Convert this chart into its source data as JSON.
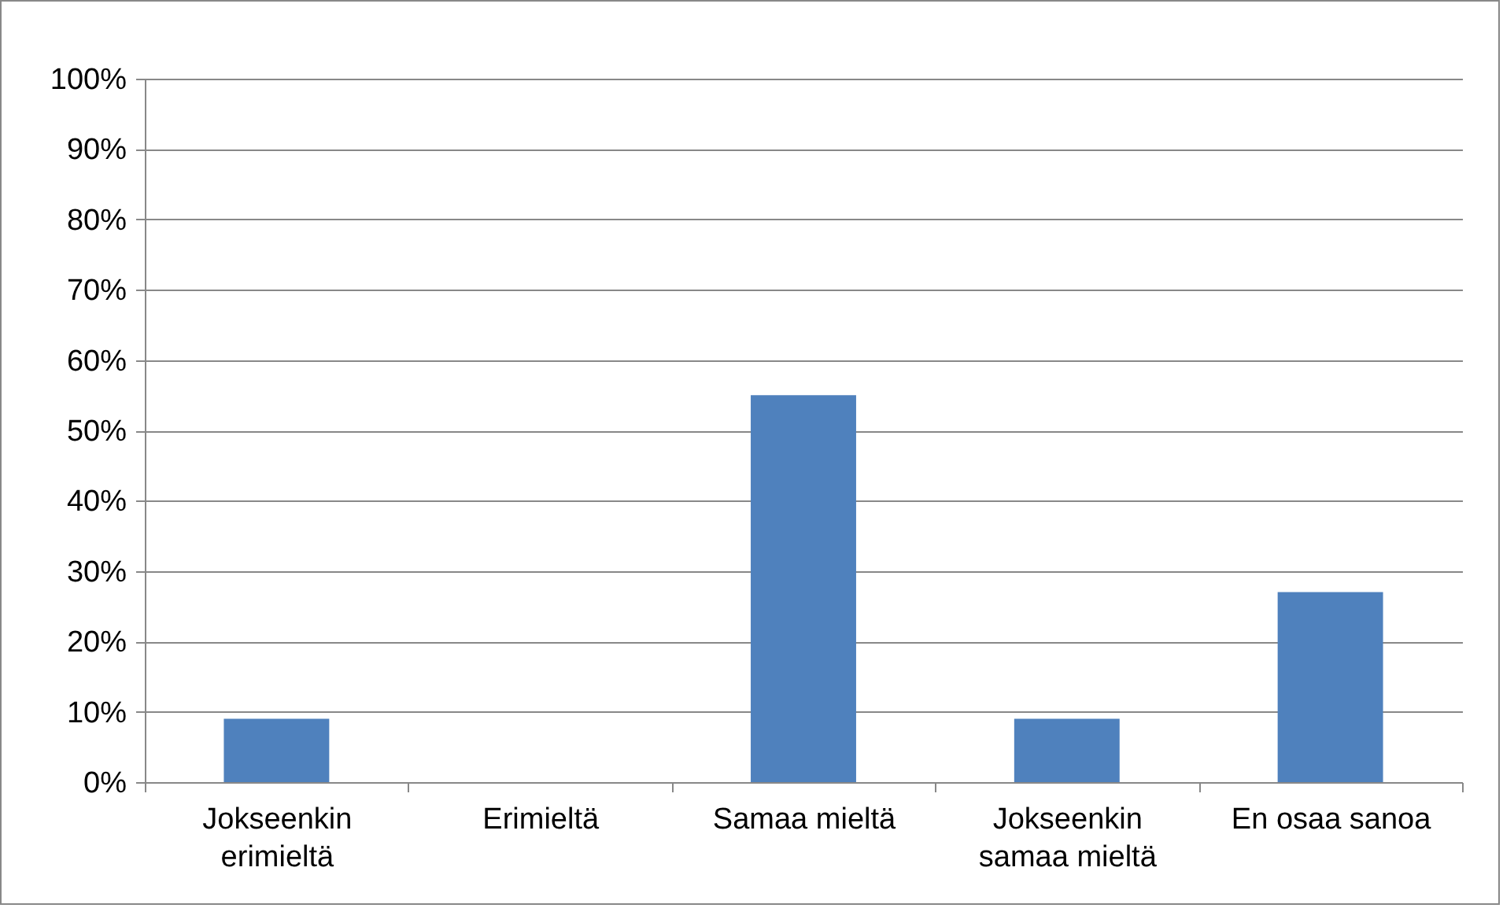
{
  "chart_data": {
    "type": "bar",
    "categories": [
      "Jokseenkin erimieltä",
      "Erimieltä",
      "Samaa mieltä",
      "Jokseenkin samaa mieltä",
      "En osaa sanoa"
    ],
    "values": [
      9,
      0,
      55,
      9,
      27
    ],
    "color": "#4f81bd",
    "ylim": [
      0,
      100
    ],
    "yticks": [
      {
        "value": 0,
        "label": "0%"
      },
      {
        "value": 10,
        "label": "10%"
      },
      {
        "value": 20,
        "label": "20%"
      },
      {
        "value": 30,
        "label": "30%"
      },
      {
        "value": 40,
        "label": "40%"
      },
      {
        "value": 50,
        "label": "50%"
      },
      {
        "value": 60,
        "label": "60%"
      },
      {
        "value": 70,
        "label": "70%"
      },
      {
        "value": 80,
        "label": "80%"
      },
      {
        "value": 90,
        "label": "90%"
      },
      {
        "value": 100,
        "label": "100%"
      }
    ],
    "grid": "y"
  }
}
